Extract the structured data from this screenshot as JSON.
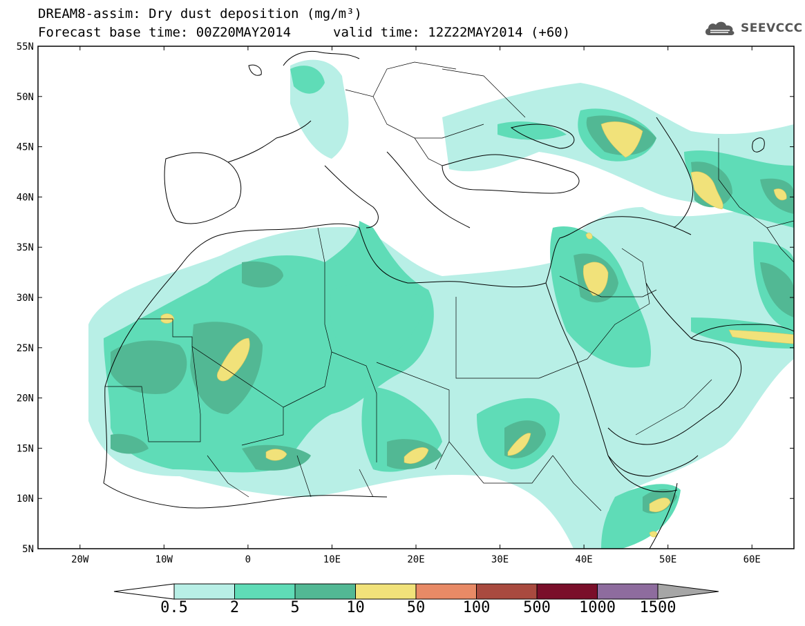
{
  "header": {
    "line1": "DREAM8-assim: Dry dust deposition (mg/m³)",
    "line2_left": "Forecast base time: 00Z20MAY2014",
    "line2_right": "valid time: 12Z22MAY2014 (+60)"
  },
  "logo": {
    "text": "SEEVCCC",
    "icon": "cloud-logo-icon"
  },
  "map": {
    "lon_range": [
      -25,
      65
    ],
    "lat_range": [
      5,
      55
    ],
    "lat_ticks": [
      "5N",
      "10N",
      "15N",
      "20N",
      "25N",
      "30N",
      "35N",
      "40N",
      "45N",
      "50N",
      "55N"
    ],
    "lon_ticks": [
      "20W",
      "10W",
      "0",
      "10E",
      "20E",
      "30E",
      "40E",
      "50E",
      "60E"
    ]
  },
  "colorbar": {
    "labels": [
      "0.5",
      "2",
      "5",
      "10",
      "50",
      "100",
      "500",
      "1000",
      "1500"
    ],
    "colors": [
      "#b8efe6",
      "#5fdcb7",
      "#52b894",
      "#f1e27a",
      "#e88a66",
      "#a94a3f",
      "#7a0f2a",
      "#8e6c9e"
    ],
    "under_color": "#ffffff",
    "over_color": "#a6a6a6"
  }
}
